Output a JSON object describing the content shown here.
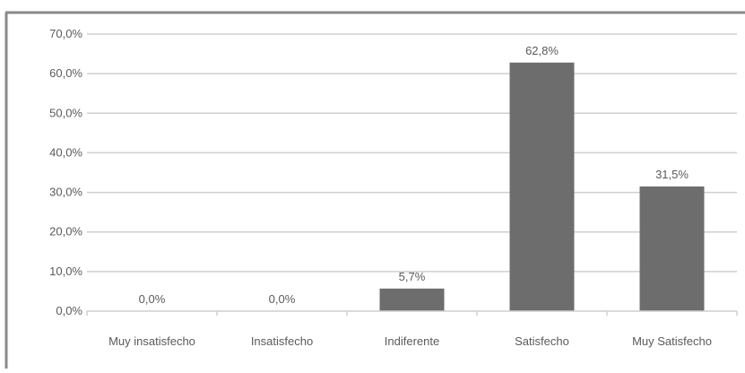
{
  "chart_data": {
    "type": "bar",
    "title": "",
    "xlabel": "",
    "ylabel": "",
    "categories": [
      "Muy insatisfecho",
      "Insatisfecho",
      "Indiferente",
      "Satisfecho",
      "Muy Satisfecho"
    ],
    "values": [
      0.0,
      0.0,
      5.7,
      62.8,
      31.5
    ],
    "data_labels": [
      "0,0%",
      "0,0%",
      "5,7%",
      "62,8%",
      "31,5%"
    ],
    "ylim": [
      0,
      70
    ],
    "yticks": [
      0,
      10,
      20,
      30,
      40,
      50,
      60,
      70
    ],
    "ytick_labels": [
      "0,0%",
      "10,0%",
      "20,0%",
      "30,0%",
      "40,0%",
      "50,0%",
      "60,0%",
      "70,0%"
    ],
    "grid": true,
    "legend": "none",
    "bar_color": "#6d6d6d",
    "grid_color": "#cfcfcf",
    "frame_color": "#8a8a8a"
  }
}
